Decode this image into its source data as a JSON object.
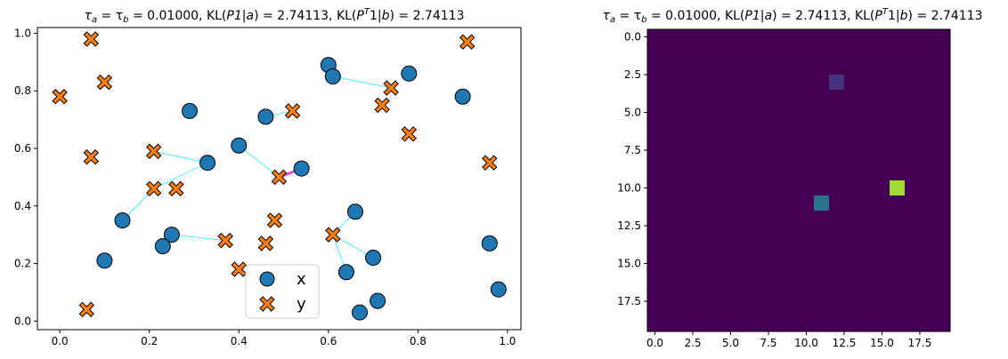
{
  "chart_data": [
    {
      "type": "scatter",
      "title": {
        "prefix": "τ",
        "sub_a": "a",
        "eq": " = τ",
        "sub_b": "b",
        "rest1": " = 0.01000, KL(",
        "p1": "P1",
        "bar_a": "|",
        "a_it": "a",
        "rest2": ") = 2.74113, KL(",
        "pt": "P",
        "sup_t": "T",
        "one": "1|",
        "b_it": "b",
        "rest3": ") = 2.74113"
      },
      "xlim": [
        -0.05,
        1.03
      ],
      "ylim": [
        -0.03,
        1.02
      ],
      "xticks": [
        "0.0",
        "0.2",
        "0.4",
        "0.6",
        "0.8",
        "1.0"
      ],
      "xtick_values": [
        0,
        0.2,
        0.4,
        0.6,
        0.8,
        1.0
      ],
      "yticks": [
        "0.0",
        "0.2",
        "0.4",
        "0.6",
        "0.8",
        "1.0"
      ],
      "ytick_values": [
        0,
        0.2,
        0.4,
        0.6,
        0.8,
        1.0
      ],
      "grid": false,
      "legend_position": "bottom-center",
      "series": [
        {
          "name": "x",
          "color": "#1f77b4",
          "marker": "circle",
          "points": [
            [
              0.29,
              0.73
            ],
            [
              0.46,
              0.71
            ],
            [
              0.4,
              0.61
            ],
            [
              0.33,
              0.55
            ],
            [
              0.54,
              0.53
            ],
            [
              0.14,
              0.35
            ],
            [
              0.25,
              0.3
            ],
            [
              0.23,
              0.26
            ],
            [
              0.1,
              0.21
            ],
            [
              0.66,
              0.38
            ],
            [
              0.7,
              0.22
            ],
            [
              0.64,
              0.17
            ],
            [
              0.67,
              0.03
            ],
            [
              0.71,
              0.07
            ],
            [
              0.6,
              0.89
            ],
            [
              0.61,
              0.85
            ],
            [
              0.78,
              0.86
            ],
            [
              0.9,
              0.78
            ],
            [
              0.96,
              0.27
            ],
            [
              0.98,
              0.11
            ]
          ]
        },
        {
          "name": "y",
          "color": "#ff7f0e",
          "marker": "x",
          "points": [
            [
              0.0,
              0.78
            ],
            [
              0.07,
              0.98
            ],
            [
              0.1,
              0.83
            ],
            [
              0.07,
              0.57
            ],
            [
              0.21,
              0.59
            ],
            [
              0.21,
              0.46
            ],
            [
              0.26,
              0.46
            ],
            [
              0.37,
              0.28
            ],
            [
              0.4,
              0.18
            ],
            [
              0.46,
              0.27
            ],
            [
              0.48,
              0.35
            ],
            [
              0.49,
              0.5
            ],
            [
              0.52,
              0.73
            ],
            [
              0.61,
              0.3
            ],
            [
              0.72,
              0.75
            ],
            [
              0.74,
              0.81
            ],
            [
              0.78,
              0.65
            ],
            [
              0.91,
              0.97
            ],
            [
              0.96,
              0.55
            ],
            [
              0.06,
              0.04
            ]
          ]
        }
      ],
      "links": [
        {
          "from": [
            0.61,
            0.85
          ],
          "to": [
            0.74,
            0.81
          ],
          "color": "#00e5ee"
        },
        {
          "from": [
            0.46,
            0.71
          ],
          "to": [
            0.52,
            0.73
          ],
          "color": "#00e5ee"
        },
        {
          "from": [
            0.4,
            0.61
          ],
          "to": [
            0.49,
            0.5
          ],
          "color": "#00e5ee"
        },
        {
          "from": [
            0.33,
            0.55
          ],
          "to": [
            0.21,
            0.59
          ],
          "color": "#00e5ee"
        },
        {
          "from": [
            0.33,
            0.55
          ],
          "to": [
            0.21,
            0.46
          ],
          "color": "#00e5ee"
        },
        {
          "from": [
            0.54,
            0.53
          ],
          "to": [
            0.49,
            0.5
          ],
          "color": "#cc33cc"
        },
        {
          "from": [
            0.14,
            0.35
          ],
          "to": [
            0.21,
            0.46
          ],
          "color": "#00e5ee"
        },
        {
          "from": [
            0.25,
            0.3
          ],
          "to": [
            0.37,
            0.28
          ],
          "color": "#00e5ee"
        },
        {
          "from": [
            0.66,
            0.38
          ],
          "to": [
            0.61,
            0.3
          ],
          "color": "#00e5ee"
        },
        {
          "from": [
            0.7,
            0.22
          ],
          "to": [
            0.61,
            0.3
          ],
          "color": "#00e5ee"
        },
        {
          "from": [
            0.64,
            0.17
          ],
          "to": [
            0.61,
            0.3
          ],
          "color": "#00e5ee"
        }
      ]
    },
    {
      "type": "heatmap",
      "title": {
        "prefix": "τ",
        "sub_a": "a",
        "eq": " = τ",
        "sub_b": "b",
        "rest1": " = 0.01000, KL(",
        "p1": "P1",
        "bar_a": "|",
        "a_it": "a",
        "rest2": ") = 2.74113, KL(",
        "pt": "P",
        "sup_t": "T",
        "one": "1|",
        "b_it": "b",
        "rest3": ") = 2.74113"
      },
      "rows": 20,
      "cols": 20,
      "background_color": "#440154",
      "xticks": [
        "0.0",
        "2.5",
        "5.0",
        "7.5",
        "10.0",
        "12.5",
        "15.0",
        "17.5"
      ],
      "xtick_values": [
        0,
        2.5,
        5,
        7.5,
        10,
        12.5,
        15,
        17.5
      ],
      "yticks": [
        "0.0",
        "2.5",
        "5.0",
        "7.5",
        "10.0",
        "12.5",
        "15.0",
        "17.5"
      ],
      "ytick_values": [
        0,
        2.5,
        5,
        7.5,
        10,
        12.5,
        15,
        17.5
      ],
      "highlighted_cells": [
        {
          "row": 3,
          "col": 12,
          "color": "#46337e"
        },
        {
          "row": 10,
          "col": 16,
          "color": "#a0da39"
        },
        {
          "row": 11,
          "col": 11,
          "color": "#2c728e"
        }
      ]
    }
  ],
  "legend": {
    "x_label": "x",
    "y_label": "y"
  }
}
